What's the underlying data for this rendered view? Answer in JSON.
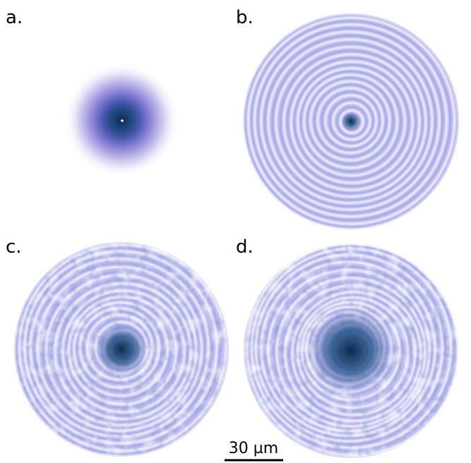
{
  "panels": [
    {
      "label": "a."
    },
    {
      "label": "b."
    },
    {
      "label": "c."
    },
    {
      "label": "d."
    }
  ],
  "scale_bar": {
    "label": "30 µm"
  }
}
